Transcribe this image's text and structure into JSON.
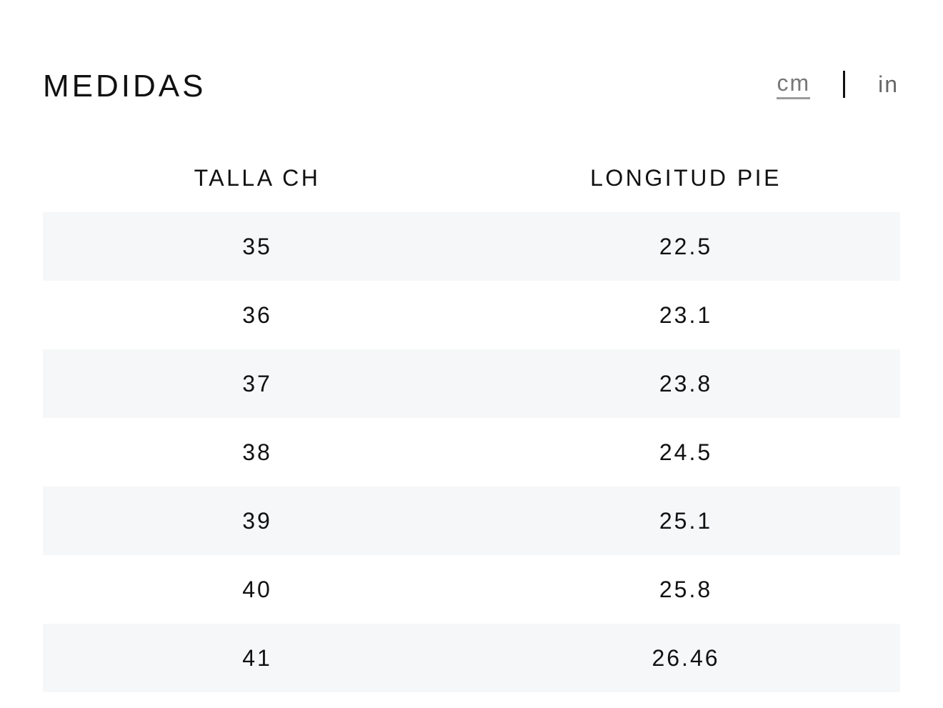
{
  "header": {
    "title": "MEDIDAS",
    "units": {
      "cm_label": "cm",
      "in_label": "in",
      "selected": "cm"
    }
  },
  "table": {
    "columns": [
      "TALLA CH",
      "LONGITUD PIE"
    ],
    "rows": [
      [
        "35",
        "22.5"
      ],
      [
        "36",
        "23.1"
      ],
      [
        "37",
        "23.8"
      ],
      [
        "38",
        "24.5"
      ],
      [
        "39",
        "25.1"
      ],
      [
        "40",
        "25.8"
      ],
      [
        "41",
        "26.46"
      ]
    ]
  }
}
